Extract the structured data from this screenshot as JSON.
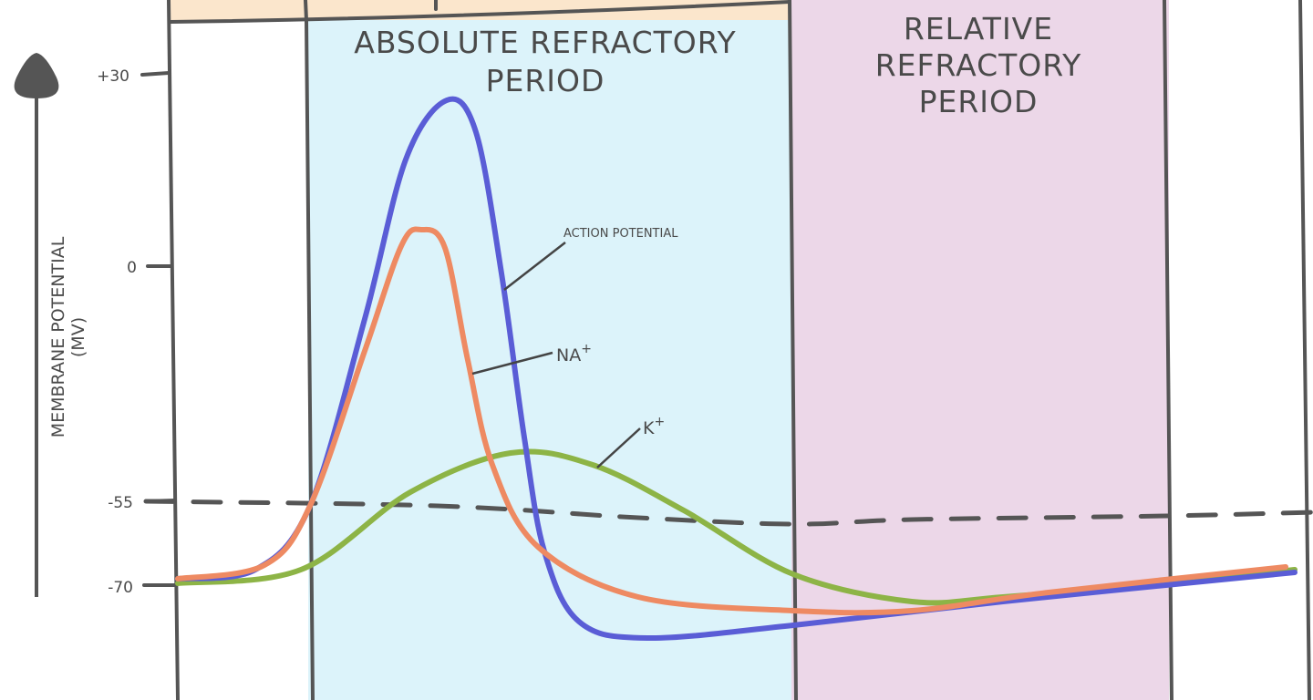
{
  "y_axis": {
    "label_line1": "MEMBRANE POTENTIAL",
    "label_line2": "(MV)",
    "ticks": [
      "+30",
      "0",
      "-55",
      "-70"
    ]
  },
  "regions": {
    "absolute": {
      "line1": "ABSOLUTE REFRACTORY",
      "line2": "PERIOD",
      "color": "#dcf3fa"
    },
    "relative": {
      "line1": "RELATIVE",
      "line2": "REFRACTORY",
      "line3": "PERIOD",
      "color": "#ecd7e8"
    },
    "header_band_color": "#fbe6cc"
  },
  "curves": {
    "action_potential": {
      "label": "ACTION POTENTIAL",
      "color": "#5a5dd6"
    },
    "sodium": {
      "label": "NA",
      "superscript": "+",
      "color": "#ee8a62"
    },
    "potassium": {
      "label": "K",
      "superscript": "+",
      "color": "#8db446"
    }
  },
  "threshold_line_color": "#555555"
}
